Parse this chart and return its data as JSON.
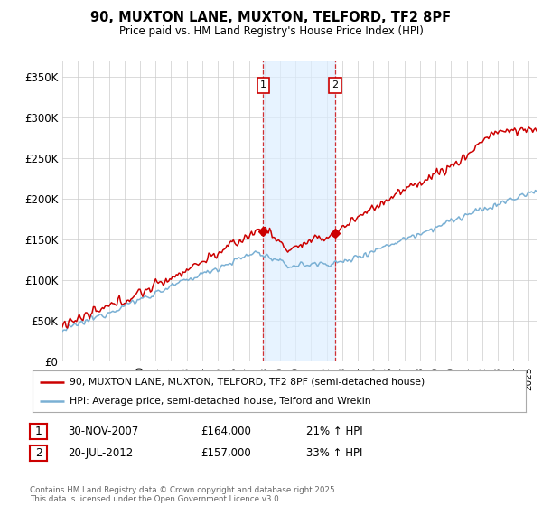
{
  "title": "90, MUXTON LANE, MUXTON, TELFORD, TF2 8PF",
  "subtitle": "Price paid vs. HM Land Registry's House Price Index (HPI)",
  "ylabel_ticks": [
    "£0",
    "£50K",
    "£100K",
    "£150K",
    "£200K",
    "£250K",
    "£300K",
    "£350K"
  ],
  "ytick_values": [
    0,
    50000,
    100000,
    150000,
    200000,
    250000,
    300000,
    350000
  ],
  "ylim": [
    0,
    370000
  ],
  "xlim_start": 1995.0,
  "xlim_end": 2025.5,
  "purchase1": {
    "date_num": 2007.92,
    "price": 164000,
    "label": "1",
    "date_str": "30-NOV-2007",
    "hpi_pct": "21%"
  },
  "purchase2": {
    "date_num": 2012.55,
    "price": 157000,
    "label": "2",
    "date_str": "20-JUL-2012",
    "hpi_pct": "33%"
  },
  "shade_x1": 2007.92,
  "shade_x2": 2012.55,
  "red_color": "#cc0000",
  "blue_color": "#7ab0d4",
  "legend_line1": "90, MUXTON LANE, MUXTON, TELFORD, TF2 8PF (semi-detached house)",
  "legend_line2": "HPI: Average price, semi-detached house, Telford and Wrekin",
  "table_row1": [
    "1",
    "30-NOV-2007",
    "£164,000",
    "21% ↑ HPI"
  ],
  "table_row2": [
    "2",
    "20-JUL-2012",
    "£157,000",
    "33% ↑ HPI"
  ],
  "footnote": "Contains HM Land Registry data © Crown copyright and database right 2025.\nThis data is licensed under the Open Government Licence v3.0.",
  "bg_color": "#ffffff",
  "grid_color": "#cccccc"
}
